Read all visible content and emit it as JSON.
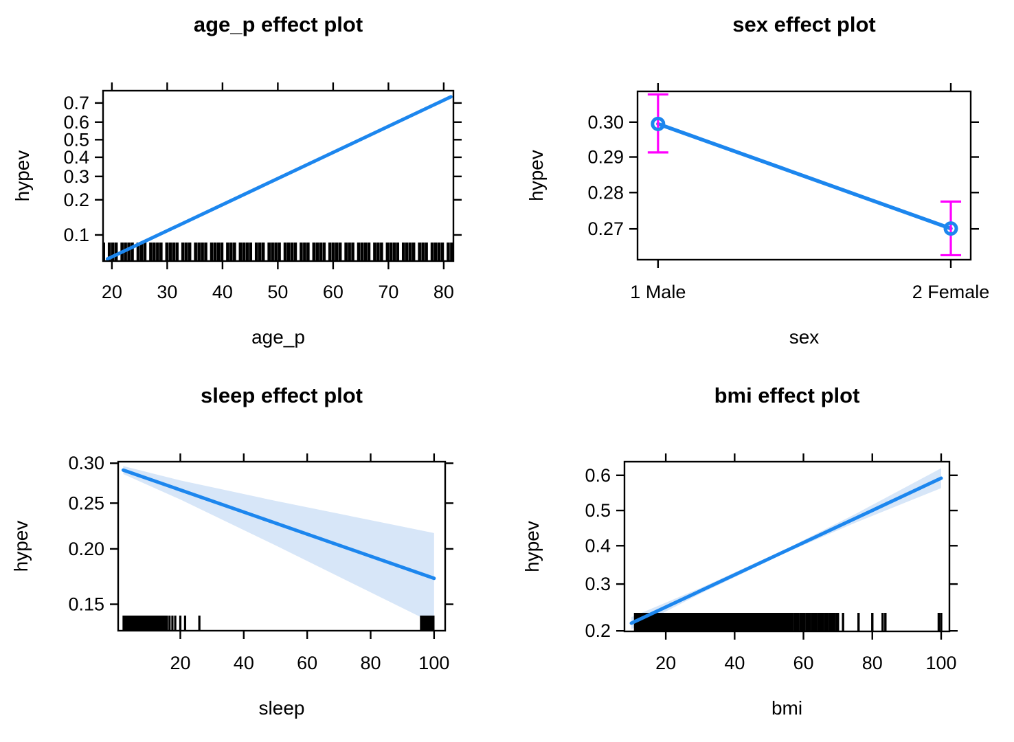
{
  "figure": {
    "background": "#ffffff",
    "description": "2x2 grid of effect plots for a logistic model of hypev"
  },
  "colors": {
    "line": "#1C86EE",
    "band": "#D7E6F8",
    "error_bar": "#FF00FF",
    "rug": "#000000",
    "axis": "#000000",
    "text": "#000000"
  },
  "chart_data": [
    {
      "key": "age_p",
      "type": "line",
      "title": "age_p effect plot",
      "xlabel": "age_p",
      "ylabel": "hypev",
      "x_axis": {
        "lim": [
          18.4,
          81.75
        ],
        "ticks": [
          20,
          30,
          40,
          50,
          60,
          70,
          80
        ],
        "tick_labels": [
          "20",
          "30",
          "40",
          "50",
          "60",
          "70",
          "80"
        ]
      },
      "y_axis": {
        "scale": "logit",
        "lim": [
          0.0573,
          0.756
        ],
        "ticks": [
          0.1,
          0.2,
          0.3,
          0.4,
          0.5,
          0.6,
          0.7
        ],
        "tick_labels": [
          "0.1",
          "0.2",
          "0.3",
          "0.4",
          "0.5",
          "0.6",
          "0.7"
        ]
      },
      "line": {
        "x": [
          19.2,
          81.3
        ],
        "y": [
          0.06,
          0.729
        ]
      },
      "rug": {
        "segments": [
          {
            "from": 18.7,
            "to": 81.4,
            "count": 86
          }
        ]
      }
    },
    {
      "key": "sex",
      "type": "point-ci",
      "title": "sex effect plot",
      "xlabel": "sex",
      "ylabel": "hypev",
      "x_axis": {
        "lim": [
          0.93,
          2.068
        ],
        "ticks": [
          1,
          2
        ],
        "tick_labels": [
          "1 Male",
          "2 Female"
        ]
      },
      "y_axis": {
        "scale": "logit",
        "lim": [
          0.2617,
          0.309
        ],
        "ticks": [
          0.27,
          0.28,
          0.29,
          0.3
        ],
        "tick_labels": [
          "0.27",
          "0.28",
          "0.29",
          "0.30"
        ]
      },
      "points": [
        {
          "x": 1,
          "label": "1 Male",
          "fit": 0.2995,
          "lower": 0.2913,
          "upper": 0.3081
        },
        {
          "x": 2,
          "label": "2 Female",
          "fit": 0.2701,
          "lower": 0.2629,
          "upper": 0.2775
        }
      ],
      "connect": true
    },
    {
      "key": "sleep",
      "type": "line",
      "title": "sleep effect plot",
      "xlabel": "sleep",
      "ylabel": "hypev",
      "x_axis": {
        "lim": [
          0.4,
          103.5
        ],
        "ticks": [
          20,
          40,
          60,
          80,
          100
        ],
        "tick_labels": [
          "20",
          "40",
          "60",
          "80",
          "100"
        ]
      },
      "y_axis": {
        "scale": "logit",
        "lim": [
          0.13,
          0.302
        ],
        "ticks": [
          0.15,
          0.2,
          0.25,
          0.3
        ],
        "tick_labels": [
          "0.15",
          "0.20",
          "0.25",
          "0.30"
        ]
      },
      "line": {
        "x": [
          2,
          100
        ],
        "y": [
          0.291,
          0.172
        ]
      },
      "band": {
        "x": [
          2,
          20,
          50,
          100
        ],
        "half_width_logit": [
          0.025,
          0.06,
          0.14,
          0.285
        ]
      },
      "rug": {
        "segments": [
          {
            "from": 2.2,
            "to": 15.8,
            "count": 50
          },
          {
            "positions": [
              16.6,
              17.5,
              18.4,
              20.0,
              21.5,
              26.0
            ]
          },
          {
            "from": 96.0,
            "to": 99.7,
            "count": 12
          }
        ]
      }
    },
    {
      "key": "bmi",
      "type": "line",
      "title": "bmi effect plot",
      "xlabel": "bmi",
      "ylabel": "hypev",
      "x_axis": {
        "lim": [
          8.0,
          102.4
        ],
        "ticks": [
          20,
          40,
          60,
          80,
          100
        ],
        "tick_labels": [
          "20",
          "40",
          "60",
          "80",
          "100"
        ]
      },
      "y_axis": {
        "scale": "logit",
        "lim": [
          0.199,
          0.637
        ],
        "ticks": [
          0.2,
          0.3,
          0.4,
          0.5,
          0.6
        ],
        "tick_labels": [
          "0.2",
          "0.3",
          "0.4",
          "0.5",
          "0.6"
        ]
      },
      "line": {
        "x": [
          10,
          100
        ],
        "y": [
          0.2145,
          0.592
        ]
      },
      "band": {
        "x": [
          10,
          30,
          55,
          75,
          100
        ],
        "half_width_logit": [
          0.07,
          0.032,
          0.02,
          0.05,
          0.115
        ]
      },
      "rug": {
        "segments": [
          {
            "from": 11.2,
            "to": 56.7,
            "count": 115
          },
          {
            "from": 57.0,
            "to": 70.0,
            "count": 28
          },
          {
            "positions": [
              71.5,
              76.0,
              80.0,
              83.0,
              83.8,
              99.3,
              100.0
            ]
          }
        ]
      }
    }
  ]
}
